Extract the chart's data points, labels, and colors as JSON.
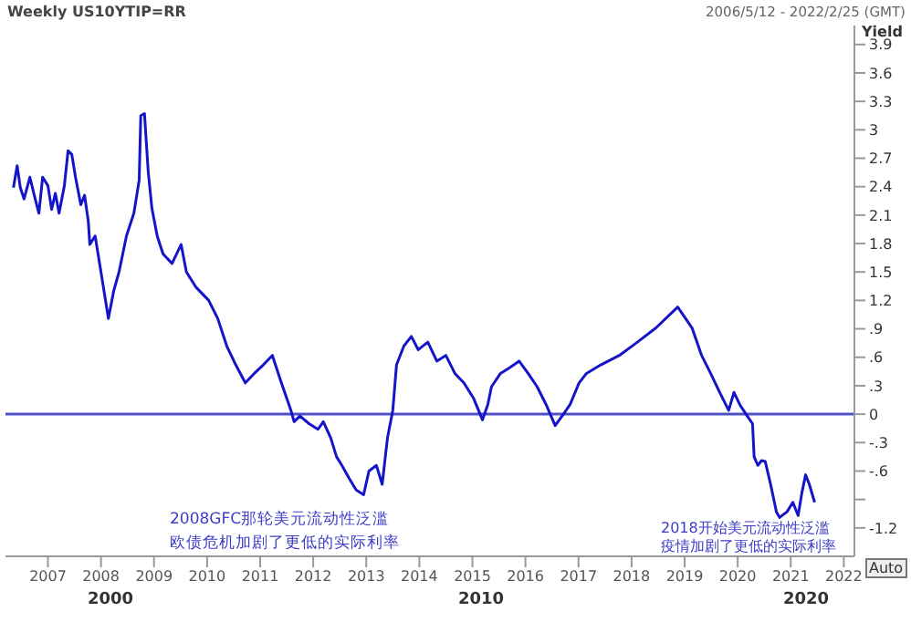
{
  "chart_data": {
    "type": "line",
    "title": "Weekly US10YTIP=RR",
    "subtitle": "2006/5/12 - 2022/2/25 (GMT)",
    "ylabel": "Yield",
    "annotations": [
      "2008GFC那轮美元流动性泛滥",
      "欧债危机加剧了更低的实际利率",
      "2018开始美元流动性泛滥",
      "疫情加剧了更低的实际利率",
      "2000",
      "2010",
      "2020",
      "Auto"
    ],
    "x": [
      2006.35,
      2006.42,
      2006.48,
      2006.55,
      2006.66,
      2006.76,
      2006.83,
      2006.9,
      2007.0,
      2007.07,
      2007.14,
      2007.21,
      2007.31,
      2007.38,
      2007.45,
      2007.52,
      2007.62,
      2007.69,
      2007.76,
      2007.79,
      2007.89,
      2008.0,
      2008.14,
      2008.24,
      2008.34,
      2008.48,
      2008.62,
      2008.72,
      2008.75,
      2008.82,
      2008.89,
      2008.96,
      2009.06,
      2009.17,
      2009.34,
      2009.51,
      2009.61,
      2009.79,
      2010.03,
      2010.2,
      2010.37,
      2010.54,
      2010.72,
      2010.89,
      2011.06,
      2011.23,
      2011.4,
      2011.58,
      2011.64,
      2011.75,
      2011.92,
      2012.09,
      2012.19,
      2012.33,
      2012.44,
      2012.54,
      2012.68,
      2012.81,
      2012.95,
      2013.05,
      2013.19,
      2013.3,
      2013.4,
      2013.5,
      2013.57,
      2013.71,
      2013.85,
      2013.98,
      2014.16,
      2014.33,
      2014.5,
      2014.67,
      2014.84,
      2015.02,
      2015.19,
      2015.29,
      2015.36,
      2015.53,
      2015.7,
      2015.88,
      2016.05,
      2016.22,
      2016.39,
      2016.56,
      2016.74,
      2016.84,
      2017.01,
      2017.15,
      2017.42,
      2017.77,
      2018.11,
      2018.46,
      2018.87,
      2019.14,
      2019.32,
      2019.49,
      2019.66,
      2019.83,
      2019.93,
      2020.04,
      2020.18,
      2020.28,
      2020.31,
      2020.38,
      2020.45,
      2020.52,
      2020.62,
      2020.73,
      2020.79,
      2020.93,
      2021.04,
      2021.14,
      2021.21,
      2021.28,
      2021.35,
      2021.45
    ],
    "series": [
      {
        "color": "#1414c8",
        "values": [
          2.39,
          2.62,
          2.39,
          2.27,
          2.5,
          2.27,
          2.12,
          2.5,
          2.41,
          2.16,
          2.33,
          2.12,
          2.41,
          2.78,
          2.74,
          2.5,
          2.21,
          2.31,
          2.04,
          1.79,
          1.88,
          1.5,
          1.01,
          1.3,
          1.5,
          1.88,
          2.12,
          2.47,
          3.15,
          3.17,
          2.56,
          2.17,
          1.88,
          1.69,
          1.59,
          1.79,
          1.5,
          1.34,
          1.2,
          1.01,
          0.72,
          0.52,
          0.33,
          0.43,
          0.52,
          0.62,
          0.33,
          0.04,
          -0.08,
          -0.02,
          -0.1,
          -0.16,
          -0.08,
          -0.25,
          -0.45,
          -0.54,
          -0.68,
          -0.8,
          -0.85,
          -0.6,
          -0.54,
          -0.74,
          -0.25,
          0.04,
          0.52,
          0.72,
          0.82,
          0.68,
          0.76,
          0.56,
          0.62,
          0.43,
          0.33,
          0.17,
          -0.06,
          0.1,
          0.29,
          0.43,
          0.49,
          0.56,
          0.43,
          0.29,
          0.1,
          -0.12,
          0.02,
          0.1,
          0.33,
          0.43,
          0.52,
          0.62,
          0.76,
          0.91,
          1.13,
          0.91,
          0.62,
          0.43,
          0.23,
          0.04,
          0.23,
          0.1,
          -0.02,
          -0.1,
          -0.45,
          -0.54,
          -0.49,
          -0.5,
          -0.74,
          -1.03,
          -1.09,
          -1.03,
          -0.93,
          -1.07,
          -0.83,
          -0.64,
          -0.74,
          -0.93
        ]
      }
    ],
    "xlim": [
      2006.2,
      2022.2
    ],
    "xticks": [
      2007,
      2008,
      2009,
      2010,
      2011,
      2012,
      2013,
      2014,
      2015,
      2016,
      2017,
      2018,
      2019,
      2020,
      2021,
      2022
    ],
    "ylim": [
      -1.5,
      4.1
    ],
    "yticks": [
      {
        "value": 3.9,
        "label": "3.9"
      },
      {
        "value": 3.6,
        "label": "3.6"
      },
      {
        "value": 3.3,
        "label": "3.3"
      },
      {
        "value": 3,
        "label": "3"
      },
      {
        "value": 2.7,
        "label": "2.7"
      },
      {
        "value": 2.4,
        "label": "2.4"
      },
      {
        "value": 2.1,
        "label": "2.1"
      },
      {
        "value": 1.8,
        "label": "1.8"
      },
      {
        "value": 1.5,
        "label": "1.5"
      },
      {
        "value": 1.2,
        "label": "1.2"
      },
      {
        "value": 0.9,
        "label": ".9"
      },
      {
        "value": 0.6,
        "label": ".6"
      },
      {
        "value": 0.3,
        "label": ".3"
      },
      {
        "value": 0,
        "label": "0"
      },
      {
        "value": -0.3,
        "label": "-.3"
      },
      {
        "value": -0.6,
        "label": "-.6"
      },
      {
        "value": -0.9,
        "label": null
      },
      {
        "value": -1.2,
        "label": "-1.2"
      }
    ],
    "ref_lines": [
      {
        "axis": "y",
        "value": 0,
        "color": "#5050c8"
      }
    ],
    "grid": false,
    "legend": false,
    "marker": "none",
    "line_style": "solid"
  }
}
